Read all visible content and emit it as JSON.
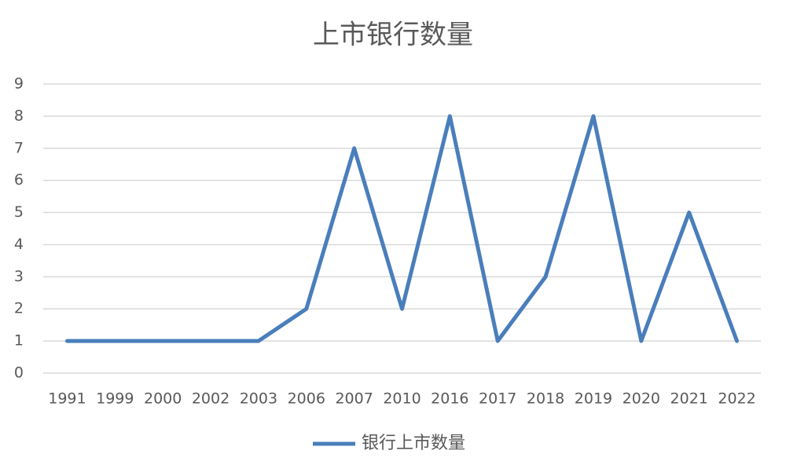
{
  "chart_data": {
    "type": "line",
    "title": "上市银行数量",
    "categories": [
      "1991",
      "1999",
      "2000",
      "2002",
      "2003",
      "2006",
      "2007",
      "2010",
      "2016",
      "2017",
      "2018",
      "2019",
      "2020",
      "2021",
      "2022"
    ],
    "series": [
      {
        "name": "银行上市数量",
        "color": "#4a7ebb",
        "values": [
          1,
          1,
          1,
          1,
          1,
          2,
          7,
          2,
          8,
          1,
          3,
          8,
          1,
          5,
          1
        ]
      }
    ],
    "ylim": [
      0,
      9
    ],
    "yticks": [
      0,
      1,
      2,
      3,
      4,
      5,
      6,
      7,
      8,
      9
    ],
    "grid": true,
    "legend": "bottom"
  }
}
